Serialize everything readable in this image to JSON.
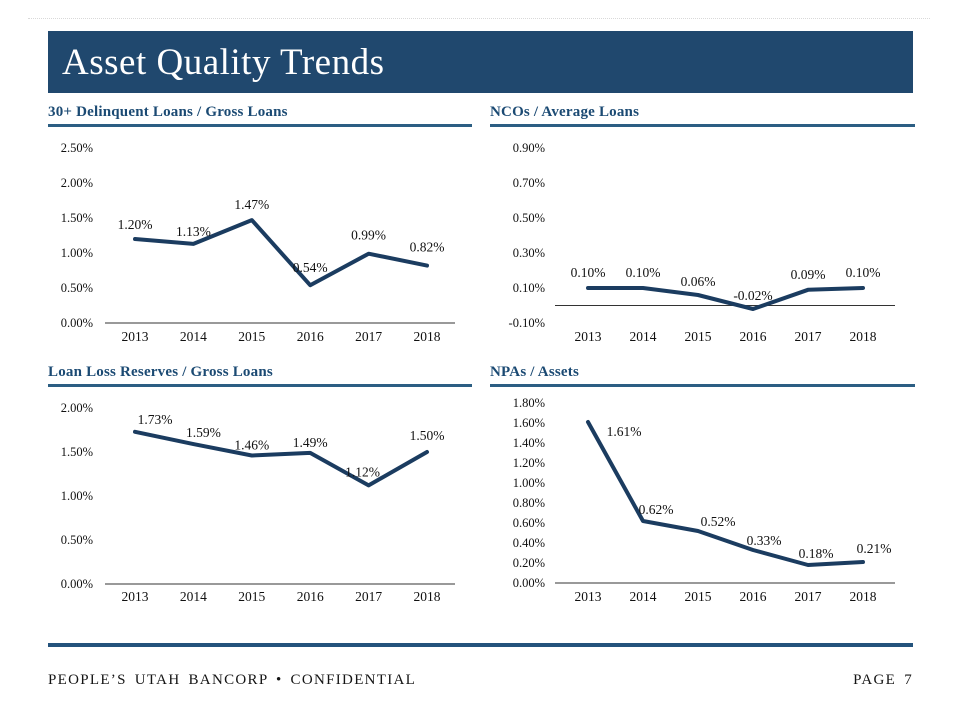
{
  "header": {
    "title": "Asset Quality Trends"
  },
  "colors": {
    "title_bar": "#20486E",
    "chart_title_text": "#1B4A73",
    "title_underline": "#2C5E83",
    "series_line": "#1B3C60",
    "footer_rule": "#24537C"
  },
  "chart_data": [
    {
      "type": "line",
      "title": "30+ Delinquent Loans / Gross Loans",
      "categories": [
        "2013",
        "2014",
        "2015",
        "2016",
        "2017",
        "2018"
      ],
      "values": [
        1.2,
        1.13,
        1.47,
        0.54,
        0.99,
        0.82
      ],
      "point_labels": [
        "1.20%",
        "1.13%",
        "1.47%",
        "0.54%",
        "0.99%",
        "0.82%"
      ],
      "yticks": [
        "2.50%",
        "2.00%",
        "1.50%",
        "1.00%",
        "0.50%",
        "0.00%"
      ],
      "ylim": [
        0.0,
        2.5
      ],
      "grid": false,
      "legend": "none"
    },
    {
      "type": "line",
      "title": "NCOs / Average Loans",
      "categories": [
        "2013",
        "2014",
        "2015",
        "2016",
        "2017",
        "2018"
      ],
      "values": [
        0.1,
        0.1,
        0.06,
        -0.02,
        0.09,
        0.1
      ],
      "point_labels": [
        "0.10%",
        "0.10%",
        "0.06%",
        "-0.02%",
        "0.09%",
        "0.10%"
      ],
      "yticks": [
        "0.90%",
        "0.70%",
        "0.50%",
        "0.30%",
        "0.10%",
        "-0.10%"
      ],
      "ylim": [
        -0.1,
        0.9
      ],
      "grid": false,
      "legend": "none"
    },
    {
      "type": "line",
      "title": "Loan Loss Reserves / Gross Loans",
      "categories": [
        "2013",
        "2014",
        "2015",
        "2016",
        "2017",
        "2018"
      ],
      "values": [
        1.73,
        1.59,
        1.46,
        1.49,
        1.12,
        1.5
      ],
      "point_labels": [
        "1.73%",
        "1.59%",
        "1.46%",
        "1.49%",
        "1.12%",
        "1.50%"
      ],
      "yticks": [
        "2.00%",
        "1.50%",
        "1.00%",
        "0.50%",
        "0.00%"
      ],
      "ylim": [
        0.0,
        2.0
      ],
      "grid": false,
      "legend": "none"
    },
    {
      "type": "line",
      "title": "NPAs / Assets",
      "categories": [
        "2013",
        "2014",
        "2015",
        "2016",
        "2017",
        "2018"
      ],
      "values": [
        1.61,
        0.62,
        0.52,
        0.33,
        0.18,
        0.21
      ],
      "point_labels": [
        "1.61%",
        "0.62%",
        "0.52%",
        "0.33%",
        "0.18%",
        "0.21%"
      ],
      "yticks": [
        "1.80%",
        "1.60%",
        "1.40%",
        "1.20%",
        "1.00%",
        "0.80%",
        "0.60%",
        "0.40%",
        "0.20%",
        "0.00%"
      ],
      "ylim": [
        0.0,
        1.8
      ],
      "grid": false,
      "legend": "none"
    }
  ],
  "footer": {
    "left": "PEOPLE’S UTAH  BANCORP  •  CONFIDENTIAL",
    "right": "PAGE 7"
  }
}
